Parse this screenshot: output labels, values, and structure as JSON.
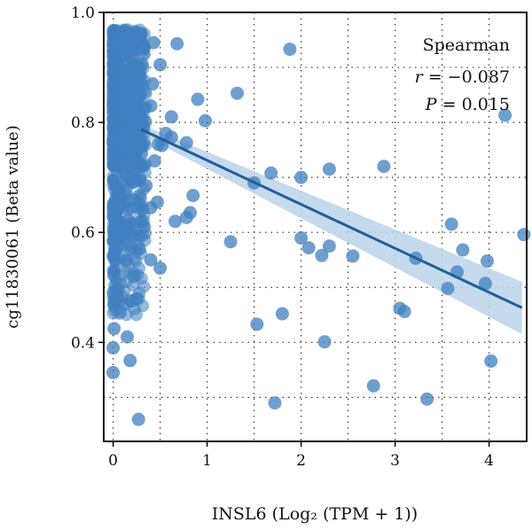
{
  "chart_data": {
    "type": "scatter",
    "title": "",
    "xlabel": "INSL6 (Log₂ (TPM + 1))",
    "ylabel": "cg11830061 (Beta value)",
    "xlim": [
      -0.1,
      4.4
    ],
    "ylim": [
      0.22,
      1.0
    ],
    "x_ticks": [
      0,
      1,
      2,
      3,
      4
    ],
    "x_tick_labels": [
      "0",
      "1",
      "2",
      "3",
      "4"
    ],
    "y_ticks": [
      0.4,
      0.6,
      0.8,
      1.0
    ],
    "y_tick_labels": [
      "0.4",
      "0.6",
      "0.8",
      "1.0"
    ],
    "grid": true,
    "point_color": "#3f7fbf",
    "line_color": "#1f5f99",
    "band_color": "#bcd3ea",
    "annotation": {
      "method": "Spearman",
      "r_label": "r",
      "r_value": " = −0.087",
      "p_label": "P",
      "p_value": " = 0.015"
    },
    "regression": {
      "x": [
        0.3,
        4.35
      ],
      "y": [
        0.787,
        0.463
      ],
      "ci_upper": [
        0.796,
        0.51
      ],
      "ci_lower": [
        0.778,
        0.415
      ]
    },
    "dense_cluster": {
      "x_range": [
        0.0,
        0.35
      ],
      "y_range": [
        0.33,
        0.97
      ],
      "note": "dense stack of points near x = 0"
    },
    "points": [
      {
        "x": 1.88,
        "y": 0.933
      },
      {
        "x": 0.68,
        "y": 0.943
      },
      {
        "x": 0.43,
        "y": 0.945
      },
      {
        "x": 4.17,
        "y": 0.813
      },
      {
        "x": 1.32,
        "y": 0.853
      },
      {
        "x": 0.9,
        "y": 0.842
      },
      {
        "x": 0.98,
        "y": 0.803
      },
      {
        "x": 0.62,
        "y": 0.773
      },
      {
        "x": 0.78,
        "y": 0.763
      },
      {
        "x": 0.52,
        "y": 0.758
      },
      {
        "x": 2.88,
        "y": 0.72
      },
      {
        "x": 2.3,
        "y": 0.715
      },
      {
        "x": 1.68,
        "y": 0.708
      },
      {
        "x": 2.0,
        "y": 0.7
      },
      {
        "x": 1.5,
        "y": 0.69
      },
      {
        "x": 0.85,
        "y": 0.667
      },
      {
        "x": 0.82,
        "y": 0.636
      },
      {
        "x": 0.78,
        "y": 0.627
      },
      {
        "x": 0.66,
        "y": 0.62
      },
      {
        "x": 3.6,
        "y": 0.615
      },
      {
        "x": 4.37,
        "y": 0.596
      },
      {
        "x": 2.0,
        "y": 0.59
      },
      {
        "x": 1.25,
        "y": 0.583
      },
      {
        "x": 2.08,
        "y": 0.572
      },
      {
        "x": 2.3,
        "y": 0.575
      },
      {
        "x": 3.72,
        "y": 0.568
      },
      {
        "x": 2.22,
        "y": 0.558
      },
      {
        "x": 2.55,
        "y": 0.557
      },
      {
        "x": 3.22,
        "y": 0.553
      },
      {
        "x": 3.98,
        "y": 0.548
      },
      {
        "x": 0.5,
        "y": 0.535
      },
      {
        "x": 3.66,
        "y": 0.528
      },
      {
        "x": 3.96,
        "y": 0.507
      },
      {
        "x": 3.56,
        "y": 0.498
      },
      {
        "x": 3.05,
        "y": 0.462
      },
      {
        "x": 3.1,
        "y": 0.456
      },
      {
        "x": 1.8,
        "y": 0.452
      },
      {
        "x": 1.53,
        "y": 0.433
      },
      {
        "x": 2.25,
        "y": 0.401
      },
      {
        "x": 4.02,
        "y": 0.366
      },
      {
        "x": 2.77,
        "y": 0.321
      },
      {
        "x": 3.34,
        "y": 0.297
      },
      {
        "x": 1.72,
        "y": 0.29
      },
      {
        "x": 0.27,
        "y": 0.26
      },
      {
        "x": 0.0,
        "y": 0.345
      },
      {
        "x": 0.18,
        "y": 0.367
      },
      {
        "x": 0.0,
        "y": 0.39
      },
      {
        "x": 0.15,
        "y": 0.41
      },
      {
        "x": 0.01,
        "y": 0.425
      },
      {
        "x": 0.25,
        "y": 0.48
      },
      {
        "x": 0.01,
        "y": 0.47
      },
      {
        "x": 0.2,
        "y": 0.475
      },
      {
        "x": 0.4,
        "y": 0.55
      },
      {
        "x": 0.33,
        "y": 0.61
      },
      {
        "x": 0.4,
        "y": 0.645
      },
      {
        "x": 0.47,
        "y": 0.655
      },
      {
        "x": 0.3,
        "y": 0.62
      },
      {
        "x": 0.22,
        "y": 0.52
      },
      {
        "x": 0.28,
        "y": 0.57
      },
      {
        "x": 0.35,
        "y": 0.685
      },
      {
        "x": 0.31,
        "y": 0.72
      },
      {
        "x": 0.44,
        "y": 0.73
      },
      {
        "x": 0.42,
        "y": 0.87
      },
      {
        "x": 0.5,
        "y": 0.905
      },
      {
        "x": 0.62,
        "y": 0.81
      },
      {
        "x": 0.48,
        "y": 0.76
      },
      {
        "x": 0.4,
        "y": 0.83
      },
      {
        "x": 0.56,
        "y": 0.78
      }
    ]
  }
}
